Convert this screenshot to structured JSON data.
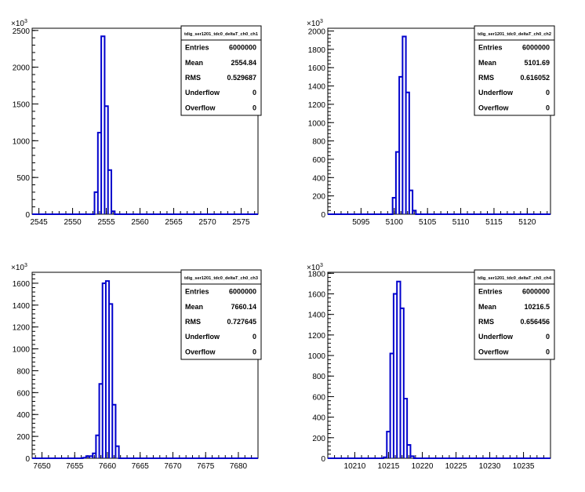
{
  "chart_data": [
    {
      "type": "bar",
      "histogram": "tdig_ser1201_tdc0_deltaT_ch0_ch1",
      "exponent_label": "×10",
      "exponent_sup": "3",
      "x": [
        2553.5,
        2554.0,
        2554.5,
        2555.0,
        2555.5,
        2556.0
      ],
      "values": [
        300,
        1110,
        2420,
        1470,
        600,
        40
      ],
      "bin_width": 0.5,
      "xlim": [
        2544,
        2577.5
      ],
      "ylim": [
        0,
        2530
      ],
      "xticks": [
        2545,
        2550,
        2555,
        2560,
        2565,
        2570,
        2575
      ],
      "yticks": [
        0,
        500,
        1000,
        1500,
        2000,
        2500
      ],
      "stats": [
        {
          "label": "Entries",
          "value": "6000000"
        },
        {
          "label": "Mean",
          "value": "2554.84"
        },
        {
          "label": "RMS",
          "value": "0.529687"
        },
        {
          "label": "Underflow",
          "value": "0"
        },
        {
          "label": "Overflow",
          "value": "0"
        }
      ]
    },
    {
      "type": "bar",
      "histogram": "tdig_ser1201_tdc0_deltaT_ch0_ch2",
      "exponent_label": "×10",
      "exponent_sup": "3",
      "x": [
        5100.0,
        5100.5,
        5101.0,
        5101.5,
        5102.0,
        5102.5,
        5103.0
      ],
      "values": [
        180,
        680,
        1500,
        1940,
        1330,
        260,
        40
      ],
      "bin_width": 0.5,
      "xlim": [
        5090,
        5123.5
      ],
      "ylim": [
        0,
        2030
      ],
      "xticks": [
        5095,
        5100,
        5105,
        5110,
        5115,
        5120
      ],
      "yticks": [
        0,
        200,
        400,
        600,
        800,
        1000,
        1200,
        1400,
        1600,
        1800,
        2000
      ],
      "stats": [
        {
          "label": "Entries",
          "value": "6000000"
        },
        {
          "label": "Mean",
          "value": "5101.69"
        },
        {
          "label": "RMS",
          "value": "0.616052"
        },
        {
          "label": "Underflow",
          "value": "0"
        },
        {
          "label": "Overflow",
          "value": "0"
        }
      ]
    },
    {
      "type": "bar",
      "histogram": "tdig_ser1201_tdc0_deltaT_ch0_ch3",
      "exponent_label": "×10",
      "exponent_sup": "3",
      "x": [
        7656.5,
        7657.0,
        7657.5,
        7658.0,
        7658.5,
        7659.0,
        7659.5,
        7660.0,
        7660.5,
        7661.0,
        7661.5
      ],
      "values": [
        5,
        20,
        20,
        45,
        210,
        680,
        1600,
        1620,
        1410,
        490,
        110
      ],
      "bin_width": 0.5,
      "xlim": [
        7648.5,
        7683
      ],
      "ylim": [
        0,
        1700
      ],
      "xticks": [
        7650,
        7655,
        7660,
        7665,
        7670,
        7675,
        7680
      ],
      "yticks": [
        0,
        200,
        400,
        600,
        800,
        1000,
        1200,
        1400,
        1600
      ],
      "stats": [
        {
          "label": "Entries",
          "value": "6000000"
        },
        {
          "label": "Mean",
          "value": "7660.14"
        },
        {
          "label": "RMS",
          "value": "0.727645"
        },
        {
          "label": "Underflow",
          "value": "0"
        },
        {
          "label": "Overflow",
          "value": "0"
        }
      ]
    },
    {
      "type": "bar",
      "histogram": "tdig_ser1201_tdc0_deltaT_ch0_ch4",
      "exponent_label": "×10",
      "exponent_sup": "3",
      "x": [
        10214.5,
        10215.0,
        10215.5,
        10216.0,
        10216.5,
        10217.0,
        10217.5,
        10218.0,
        10218.5
      ],
      "values": [
        10,
        260,
        1020,
        1600,
        1720,
        1460,
        580,
        130,
        20
      ],
      "bin_width": 0.5,
      "xlim": [
        10206,
        10239
      ],
      "ylim": [
        0,
        1810
      ],
      "xticks": [
        10210,
        10215,
        10220,
        10225,
        10230,
        10235
      ],
      "yticks": [
        0,
        200,
        400,
        600,
        800,
        1000,
        1200,
        1400,
        1600,
        1800
      ],
      "stats": [
        {
          "label": "Entries",
          "value": "6000000"
        },
        {
          "label": "Mean",
          "value": "10216.5"
        },
        {
          "label": "RMS",
          "value": "0.656456"
        },
        {
          "label": "Underflow",
          "value": "0"
        },
        {
          "label": "Overflow",
          "value": "0"
        }
      ]
    }
  ]
}
